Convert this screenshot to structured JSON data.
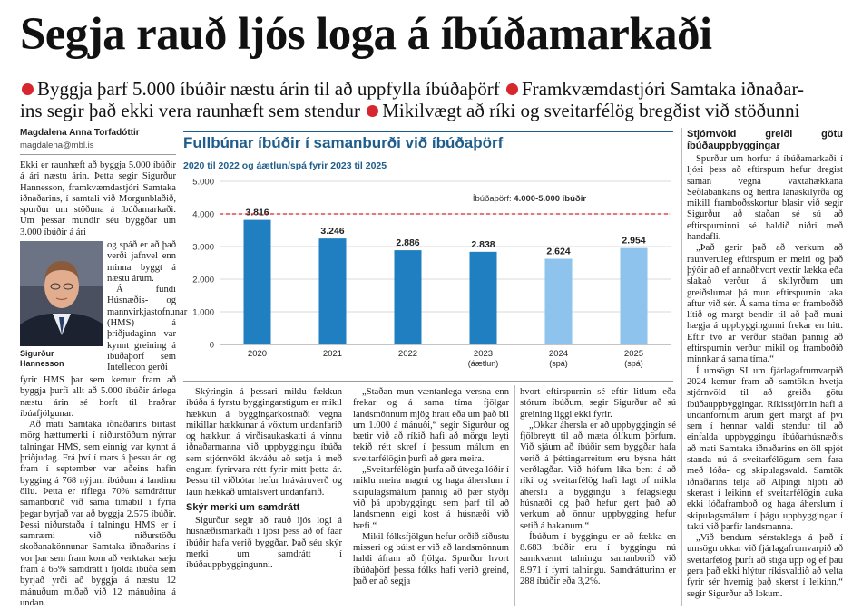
{
  "headline": "Segja rauð ljós loga á íbúðamarkaði",
  "subhead": {
    "line1_a": "Byggja þarf 5.000 íbúðir næstu árin til að uppfylla íbúðaþörf",
    "line1_b": "Framkvæmdastjóri Samtaka iðnaðar-",
    "line2_a": "ins segir það ekki vera raunhæft sem stendur",
    "line2_b": "Mikilvægt að ríki og sveitarfélög bregðist við stöðunni",
    "bullet_color": "#d7262e"
  },
  "byline": {
    "author": "Magdalena Anna Torfadóttir",
    "email": "magdalena@mbl.is"
  },
  "photo": {
    "caption_line1": "Sigurður",
    "caption_line2": "Hannesson"
  },
  "col1": {
    "p1": "Ekki er raunhæft að byggja 5.000 íbúðir á ári næstu árin. Þetta segir Sigurður Hannesson, framkvæmdastjóri Samtaka iðnaðarins, í samtali við Morgunblaðið, spurður um stöðuna á íbúðamarkaði. Um þessar mundir séu byggðar um 3.000 íbúðir á ári",
    "p1_side": "og spáð er að það verði jafnvel enn minna byggt á næstu árum.",
    "p2_side": "Á fundi Húsnæðis- og mannvirkjastofnunar (HMS) á þriðjudaginn var kynnt greining á íbúðaþörf sem Intellecon gerði",
    "p2_rest": "fyrir HMS þar sem kemur fram að byggja þurfi allt að 5.000 íbúðir árlega næstu árin sé horft til hraðrar íbúafjölgunar.",
    "p3": "Að mati Samtaka iðnaðarins birtast mörg hættumerki í niðurstöðum nýrrar talningar HMS, sem einnig var kynnt á þriðjudag. Frá því í mars á þessu ári og fram í september var aðeins hafin bygging á 768 nýjum íbúðum á landinu öllu. Þetta er ríflega 70% samdráttur samanborið við sama tímabil í fyrra þegar byrjað var að byggja 2.575 íbúðir. Þessi niðurstaða í talningu HMS er í samræmi við niðurstöðu skoðanakönnunar Samtaka iðnaðarins í vor þar sem fram kom að verktakar sæju fram á 65% samdrátt í fjölda íbúða sem byrjað yrði að byggja á næstu 12 mánuðum miðað við 12 mánuðina á undan."
  },
  "col2": {
    "p1": "Skýringin á þessari miklu fækkun íbúða á fyrstu byggingarstigum er mikil hækkun á byggingarkostnaði vegna mikillar hækkunar á vöxtum undanfarið og hækkun á virðisaukaskatti á vinnu iðnaðarmanna við uppbyggingu íbúða sem stjórnvöld ákváðu að setja á með engum fyrirvara rétt fyrir mitt þetta ár. Þessu til viðbótar hefur hráváruverð og laun hækkað umtalsvert undanfarið.",
    "h": "Skýr merki um samdrátt",
    "p2": "Sigurður segir að rauð ljós logi á húsnæðismarkaði í ljósi þess að of fáar íbúðir hafa verið byggðar. Það séu skýr merki um samdrátt í íbúðauppbyggingunni."
  },
  "col3": {
    "p1": "„Staðan mun væntanlega versna enn frekar og á sama tíma fjölgar landsmönnum mjög hratt eða um það bil um 1.000 á mánuði,“ segir Sigurður og bætir við að ríkið hafi að mörgu leyti tekið rétt skref í þessum málum en sveitarfélögin þurfi að gera meira.",
    "p2": "„Sveitarfélögin þurfa að útvega lóðir í miklu meira magni og haga áherslum í skipulagsmálum þannig að þær styðji við þá uppbyggingu sem þarf til að landsmenn eigi kost á húsnæði við hæfi.“",
    "p3": "Mikil fólksfjölgun hefur orðið síðustu misseri og búist er við að landsmönnum haldi áfram að fjölga. Spurður hvort íbúðaþörf þessa fólks hafi verið greind, það er að segja"
  },
  "col4": {
    "p1": "hvort eftirspurnin sé eftir litlum eða stórum íbúðum, segir Sigurður að sú greining liggi ekki fyrir.",
    "p2": "„Okkar áhersla er að uppbyggingin sé fjölbreytt til að mæta ólíkum þörfum. Við sjáum að íbúðir sem byggðar hafa verið á þéttingarreitum eru býsna hátt verðlagðar. Við höfum líka bent á að ríki og sveitarfélög hafi lagt of mikla áherslu á byggingu á félagslegu húsnæði og það hefur gert það að verkum að önnur uppbygging hefur setið á hakanum.“",
    "p3": "Íbúðum í byggingu er að fækka en 8.683 íbúðir eru í byggingu nú samkvæmt talningu samanborið við 8.971 í fyrri talningu. Samdrátturinn er 288 íbúðir eða 3,2%."
  },
  "col5": {
    "h": "Stjórnvöld greiði götu íbúðauppbyggingar",
    "p1": "Spurður um horfur á íbúðamarkaði í ljósi þess að eftirspurn hefur dregist saman vegna vaxtahækkana Seðlabankans og hertra lánaskilyrða og mikill framboðsskortur blasir við segir Sigurður að staðan sé sú að eftirspurninni sé haldið niðri með handafli.",
    "p2": "„Það gerir það að verkum að raunveruleg eftirspurn er meiri og það þýðir að ef annaðhvort vextir lækka eða slakað verður á skilyrðum um greiðslumat þá mun eftirspurnin taka aftur við sér. Á sama tíma er framboðið lítið og margt bendir til að það muni hægja á uppbyggingunni frekar en hitt. Eftir tvö ár verður staðan þannig að eftirspurnin verður mikil og framboðið minnkar á sama tíma.“",
    "p3": "Í umsögn SI um fjárlagafrumvarpið 2024 kemur fram að samtökin hvetja stjórnvöld til að greiða götu íbúðauppbyggingar. Ríkisstjórnin hafi á undanförnum árum gert margt af því sem í hennar valdi stendur til að einfalda uppbyggingu íbúðarhúsnæðis að mati Samtaka iðnaðarins en öll spjót standa nú á sveitarfélögum sem fara með lóða- og skipulagsvald. Samtök iðnaðarins telja að Alþingi hljóti að skerast í leikinn ef sveitarfélögin auka ekki lóðaframboð og haga áherslum í skipulagsmálum í þágu uppbyggingar í takti við þarfir landsmanna.",
    "p4": "„Við bendum sérstaklega á það í umsögn okkar við fjárlagafrumvarpið að sveitarfélög þurfi að stíga upp og ef þau gera það ekki hlýtur ríkisvaldið að velta fyrir sér hvernig það skerst í leikinn,“ segir Sigurður að lokum."
  },
  "chart_data": {
    "type": "bar",
    "title": "Fullbúnar íbúðir í samanburði við íbúðaþörf",
    "subtitle": "2020 til 2022 og áætlun/spá fyrir 2023 til 2025",
    "categories": [
      "2020",
      "2021",
      "2022",
      "2023",
      "2024",
      "2025"
    ],
    "category_sublabels": [
      "",
      "",
      "",
      "(áætlun)",
      "(spá)",
      "(spá)"
    ],
    "values": [
      3816,
      3246,
      2886,
      2838,
      2624,
      2954
    ],
    "value_labels": [
      "3.816",
      "3.246",
      "2.886",
      "2.838",
      "2.624",
      "2.954"
    ],
    "bar_colors": [
      "#1f7fc0",
      "#1f7fc0",
      "#1f7fc0",
      "#1f7fc0",
      "#8ec3ee",
      "#8ec3ee"
    ],
    "ylim": [
      0,
      5000
    ],
    "yticks": [
      0,
      1000,
      2000,
      3000,
      4000,
      5000
    ],
    "ytick_labels": [
      "0",
      "1.000",
      "2.000",
      "3.000",
      "4.000",
      "5.000"
    ],
    "grid": true,
    "reference_line": {
      "value": 4000,
      "label_prefix": "Íbúðaþörf: ",
      "label_value": "4.000-5.000 íbúðir",
      "color": "#d7262e"
    },
    "source": "Heimild/Samtök iðnaðarins",
    "title_color": "#1f5e8c"
  }
}
